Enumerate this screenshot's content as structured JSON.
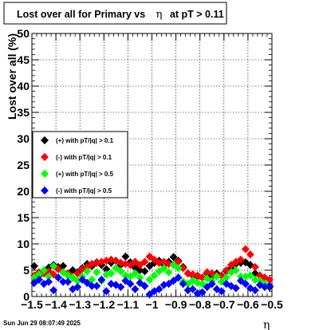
{
  "title_main": "Lost over all for Primary vs",
  "title_eta": "η",
  "title_tail": "at pT > 0.11",
  "footer_date": "Sun Jun 29 08:07:49 2025",
  "chart_data": {
    "type": "scatter",
    "title": "Lost over all for Primary vs η at pT > 0.11",
    "xlabel": "η",
    "ylabel": "Lost over all (%)",
    "xlim": [
      -1.5,
      -0.5
    ],
    "ylim": [
      0,
      50
    ],
    "x_ticks": [
      -1.5,
      -1.4,
      -1.3,
      -1.2,
      -1.1,
      -1,
      -0.9,
      -0.8,
      -0.7,
      -0.6,
      -0.5
    ],
    "x_tick_labels": [
      "−1.5",
      "−1.4",
      "−1.3",
      "−1.2",
      "−1.1",
      "−1",
      "−0.9",
      "−0.8",
      "−0.7",
      "−0.6",
      "−0.5"
    ],
    "y_ticks": [
      0,
      5,
      10,
      15,
      20,
      25,
      30,
      35,
      40,
      45,
      50
    ],
    "y_tick_labels": [
      "0",
      "5",
      "10",
      "15",
      "20",
      "25",
      "30",
      "35",
      "40",
      "45",
      "50"
    ],
    "grid": true,
    "legend_position": "middle-left",
    "x": [
      -1.49,
      -1.47,
      -1.45,
      -1.43,
      -1.41,
      -1.39,
      -1.37,
      -1.35,
      -1.33,
      -1.31,
      -1.29,
      -1.27,
      -1.25,
      -1.23,
      -1.21,
      -1.19,
      -1.17,
      -1.15,
      -1.13,
      -1.11,
      -1.09,
      -1.07,
      -1.05,
      -1.03,
      -1.01,
      -0.99,
      -0.97,
      -0.95,
      -0.93,
      -0.91,
      -0.89,
      -0.87,
      -0.85,
      -0.83,
      -0.81,
      -0.79,
      -0.77,
      -0.75,
      -0.73,
      -0.71,
      -0.69,
      -0.67,
      -0.65,
      -0.63,
      -0.61,
      -0.59,
      -0.57,
      -0.55,
      -0.53,
      -0.51
    ],
    "series": [
      {
        "name": "(+) with pT/|q| > 0.1",
        "color": "#000000",
        "values": [
          5.8,
          4.0,
          4.5,
          5.5,
          6.0,
          5.6,
          5.8,
          4.2,
          5.0,
          4.6,
          5.4,
          6.2,
          5.8,
          6.5,
          6.0,
          5.2,
          6.4,
          6.8,
          6.0,
          7.6,
          6.5,
          5.5,
          5.0,
          4.8,
          5.8,
          6.4,
          6.8,
          6.0,
          6.6,
          7.5,
          6.8,
          5.6,
          4.4,
          4.0,
          3.8,
          3.6,
          4.4,
          3.8,
          4.4,
          4.0,
          4.8,
          5.4,
          6.2,
          6.4,
          6.5,
          6.0,
          4.4,
          4.0,
          2.4,
          1.8
        ]
      },
      {
        "name": "(-) with pT/|q| > 0.1",
        "color": "#ff0000",
        "values": [
          4.0,
          4.6,
          4.4,
          4.8,
          4.2,
          5.2,
          4.6,
          4.4,
          3.6,
          4.4,
          5.2,
          5.6,
          6.2,
          6.4,
          6.6,
          6.8,
          7.0,
          6.8,
          6.4,
          6.2,
          6.0,
          6.6,
          6.0,
          6.6,
          7.6,
          7.0,
          6.4,
          6.6,
          6.2,
          6.0,
          6.6,
          5.4,
          4.4,
          4.2,
          4.0,
          3.6,
          4.6,
          4.4,
          4.0,
          4.0,
          5.0,
          6.0,
          6.6,
          7.0,
          9.0,
          8.0,
          5.6,
          4.0,
          3.6,
          3.2
        ]
      },
      {
        "name": "(+) with pT/|q| > 0.5",
        "color": "#00ff00",
        "values": [
          3.6,
          4.2,
          5.0,
          3.8,
          5.8,
          3.6,
          4.6,
          4.0,
          3.6,
          3.0,
          3.8,
          4.8,
          3.2,
          4.6,
          3.0,
          4.2,
          4.4,
          5.4,
          4.8,
          4.0,
          3.8,
          4.4,
          3.6,
          2.0,
          3.2,
          4.0,
          4.8,
          5.4,
          4.6,
          6.0,
          5.4,
          2.8,
          2.4,
          3.0,
          2.6,
          2.4,
          3.4,
          3.0,
          3.8,
          2.8,
          3.6,
          4.6,
          5.0,
          3.8,
          3.8,
          4.0,
          3.2,
          3.0,
          2.4,
          2.0
        ]
      },
      {
        "name": "(-) with pT/|q| > 0.5",
        "color": "#0000ff",
        "values": [
          2.6,
          3.2,
          2.4,
          2.8,
          1.2,
          3.6,
          2.8,
          2.8,
          1.4,
          1.8,
          3.2,
          2.6,
          2.0,
          2.0,
          3.2,
          1.0,
          2.4,
          2.2,
          1.8,
          3.0,
          2.4,
          1.4,
          2.6,
          2.0,
          0.4,
          1.0,
          1.4,
          2.2,
          2.4,
          3.0,
          3.6,
          2.4,
          1.2,
          1.4,
          0.6,
          0.8,
          1.8,
          2.4,
          1.4,
          1.0,
          2.4,
          2.0,
          1.6,
          3.0,
          2.4,
          1.6,
          1.2,
          2.2,
          1.8,
          2.0
        ]
      }
    ]
  }
}
